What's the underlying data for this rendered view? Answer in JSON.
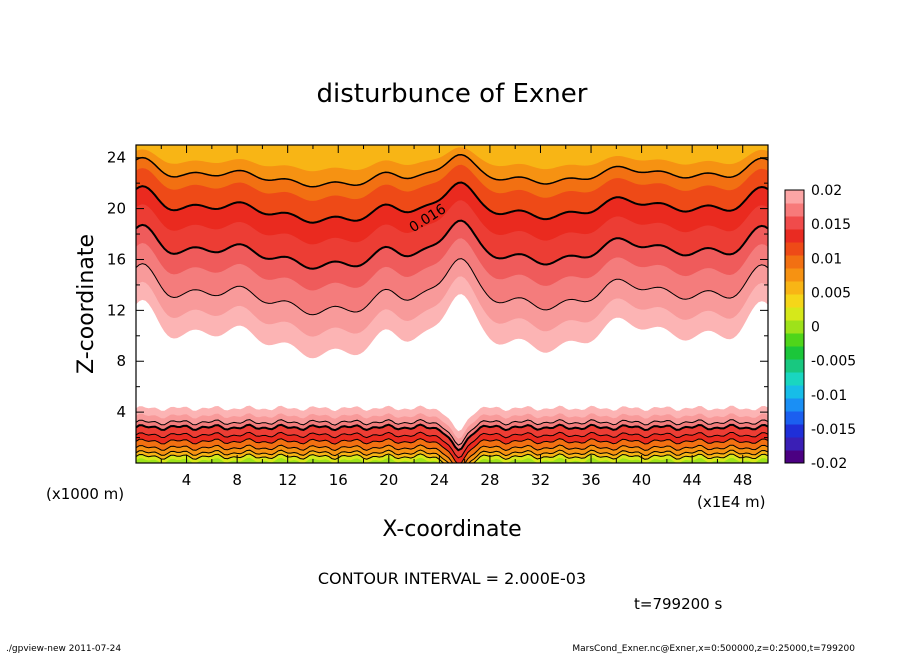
{
  "chart_data": {
    "type": "heatmap",
    "title": "disturbunce of Exner",
    "xlabel": "X-coordinate",
    "ylabel": "Z-coordinate",
    "x_unit_left": "(x1000 m)",
    "x_unit_right": "(x1E4 m)",
    "xlim": [
      0,
      50
    ],
    "ylim": [
      0,
      25
    ],
    "xticks": [
      "4",
      "8",
      "12",
      "16",
      "20",
      "24",
      "28",
      "32",
      "36",
      "40",
      "44",
      "48"
    ],
    "yticks": [
      "4",
      "8",
      "12",
      "16",
      "20",
      "24"
    ],
    "contour_label": "0.016",
    "contour_interval_text": "CONTOUR INTERVAL = 2.000E-03",
    "time_text": "t=799200 s",
    "colorbar": {
      "min": -0.02,
      "max": 0.02,
      "labels": [
        "0.02",
        "0.015",
        "0.01",
        "0.005",
        "0",
        "-0.005",
        "-0.01",
        "-0.015",
        "-0.02"
      ],
      "colors": [
        "#4b0082",
        "#3a1fb5",
        "#1f2fd8",
        "#1b5ff0",
        "#1a8ff5",
        "#17bde8",
        "#19d6c0",
        "#18c880",
        "#1bc63a",
        "#4fd51a",
        "#9ee21a",
        "#d6e81a",
        "#f5d619",
        "#f8b515",
        "#f69212",
        "#f27012",
        "#ee4a17",
        "#e92b22",
        "#f04b4b",
        "#f77a7a",
        "#fca5a5"
      ]
    },
    "fields": {
      "top_layer_z": [
        25,
        24
      ],
      "white_gap_z": [
        4,
        9
      ],
      "bottom_layer_z": [
        0,
        4
      ],
      "peak_x": 25.5
    }
  },
  "footer": {
    "left": "./gpview-new  2011-07-24",
    "right": "MarsCond_Exner.nc@Exner,x=0:500000,z=0:25000,t=799200"
  }
}
